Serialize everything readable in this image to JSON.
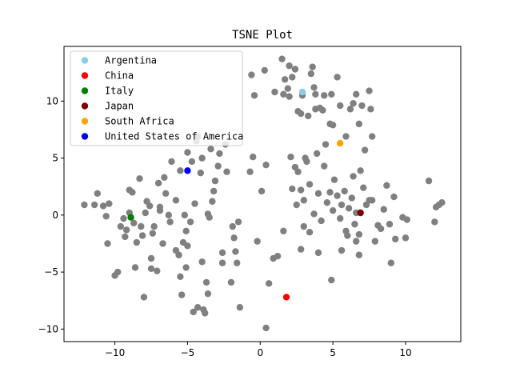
{
  "chart_data": {
    "type": "scatter",
    "title": "TSNE Plot",
    "xlabel": "",
    "ylabel": "",
    "xlim": [
      -13.5,
      13.8
    ],
    "ylim": [
      -11.1,
      14.8
    ],
    "xticks": [
      -10,
      -5,
      0,
      5,
      10
    ],
    "yticks": [
      -10,
      -5,
      0,
      5,
      10
    ],
    "grid": false,
    "legend_position": "top-left",
    "background_points_color": "#808080",
    "background_points": [
      [
        -12.1,
        0.9
      ],
      [
        -11.4,
        0.9
      ],
      [
        -11.2,
        1.9
      ],
      [
        -10.8,
        0.8
      ],
      [
        -10.6,
        -0.1
      ],
      [
        -10.4,
        1.0
      ],
      [
        -10.5,
        -2.5
      ],
      [
        -10.0,
        -5.3
      ],
      [
        -9.8,
        -5.0
      ],
      [
        -9.6,
        -1.0
      ],
      [
        -9.4,
        -0.3
      ],
      [
        -9.3,
        -1.9
      ],
      [
        -9.2,
        -1.3
      ],
      [
        -9.0,
        0.2
      ],
      [
        -9.0,
        2.2
      ],
      [
        -8.8,
        2.0
      ],
      [
        -8.7,
        -0.7
      ],
      [
        -8.6,
        -4.6
      ],
      [
        -8.5,
        -2.4
      ],
      [
        -8.3,
        3.2
      ],
      [
        -8.2,
        -1.0
      ],
      [
        -8.1,
        -1.8
      ],
      [
        -8.0,
        -7.2
      ],
      [
        -7.9,
        0.2
      ],
      [
        -7.8,
        1.2
      ],
      [
        -7.6,
        0.8
      ],
      [
        -7.5,
        -3.8
      ],
      [
        -7.5,
        -4.7
      ],
      [
        -7.4,
        -1.6
      ],
      [
        -7.3,
        -1.0
      ],
      [
        -7.1,
        -4.9
      ],
      [
        -7.0,
        2.8
      ],
      [
        -6.9,
        0.4
      ],
      [
        -6.9,
        0.7
      ],
      [
        -6.7,
        -2.5
      ],
      [
        -6.6,
        3.3
      ],
      [
        -6.5,
        1.9
      ],
      [
        -6.3,
        0.0
      ],
      [
        -6.2,
        -0.6
      ],
      [
        -6.1,
        4.7
      ],
      [
        -5.8,
        1.3
      ],
      [
        -5.8,
        -3.1
      ],
      [
        -5.6,
        -3.5
      ],
      [
        -5.5,
        3.9
      ],
      [
        -5.5,
        -5.4
      ],
      [
        -5.4,
        -7.0
      ],
      [
        -5.3,
        -2.4
      ],
      [
        -5.2,
        0.0
      ],
      [
        -5.1,
        -1.4
      ],
      [
        -5.1,
        -4.6
      ],
      [
        -5.0,
        5.5
      ],
      [
        -5.0,
        -2.7
      ],
      [
        -4.8,
        -0.6
      ],
      [
        -4.7,
        4.7
      ],
      [
        -4.6,
        -8.5
      ],
      [
        -4.5,
        1.0
      ],
      [
        -4.4,
        6.5
      ],
      [
        -4.3,
        6.9
      ],
      [
        -4.3,
        -8.1
      ],
      [
        -4.1,
        3.7
      ],
      [
        -4.0,
        5.0
      ],
      [
        -4.0,
        -4.1
      ],
      [
        -3.9,
        -8.3
      ],
      [
        -3.8,
        -8.6
      ],
      [
        -3.7,
        -5.9
      ],
      [
        -3.6,
        -6.9
      ],
      [
        -3.6,
        0.1
      ],
      [
        -3.5,
        -0.2
      ],
      [
        -3.4,
        5.8
      ],
      [
        -3.3,
        1.2
      ],
      [
        -3.2,
        2.1
      ],
      [
        -3.1,
        3.0
      ],
      [
        -2.9,
        4.3
      ],
      [
        -2.8,
        5.4
      ],
      [
        -2.6,
        -3.3
      ],
      [
        -2.6,
        -4.2
      ],
      [
        -2.4,
        6.2
      ],
      [
        -2.3,
        3.8
      ],
      [
        -2.0,
        -5.9
      ],
      [
        -1.9,
        -1.0
      ],
      [
        -1.8,
        -2.0
      ],
      [
        -1.7,
        -3.2
      ],
      [
        -1.6,
        -4.2
      ],
      [
        -1.5,
        -0.6
      ],
      [
        -1.4,
        -8.1
      ],
      [
        -0.7,
        3.8
      ],
      [
        -0.6,
        12.3
      ],
      [
        -0.5,
        5.1
      ],
      [
        -0.4,
        10.5
      ],
      [
        -0.2,
        -2.3
      ],
      [
        0.1,
        2.1
      ],
      [
        0.3,
        12.7
      ],
      [
        0.4,
        4.4
      ],
      [
        0.4,
        -9.9
      ],
      [
        0.6,
        -6.0
      ],
      [
        1.0,
        10.8
      ],
      [
        1.2,
        -3.6
      ],
      [
        1.5,
        13.7
      ],
      [
        1.6,
        10.6
      ],
      [
        1.7,
        11.9
      ],
      [
        1.9,
        11.1
      ],
      [
        2.0,
        13.1
      ],
      [
        2.0,
        10.4
      ],
      [
        2.1,
        5.1
      ],
      [
        2.2,
        12.1
      ],
      [
        2.4,
        4.2
      ],
      [
        2.4,
        12.8
      ],
      [
        2.6,
        9.1
      ],
      [
        2.8,
        8.9
      ],
      [
        2.9,
        10.5
      ],
      [
        3.1,
        5.0
      ],
      [
        3.3,
        8.7
      ],
      [
        3.5,
        12.4
      ],
      [
        3.6,
        13.0
      ],
      [
        3.7,
        11.2
      ],
      [
        3.8,
        9.3
      ],
      [
        3.8,
        10.6
      ],
      [
        4.1,
        9.4
      ],
      [
        4.3,
        9.2
      ],
      [
        4.4,
        10.5
      ],
      [
        4.5,
        6.2
      ],
      [
        4.8,
        8.0
      ],
      [
        4.9,
        10.6
      ],
      [
        5.0,
        7.9
      ],
      [
        5.3,
        12.1
      ],
      [
        5.5,
        9.6
      ],
      [
        5.9,
        6.9
      ],
      [
        6.2,
        9.3
      ],
      [
        6.4,
        9.8
      ],
      [
        6.6,
        10.6
      ],
      [
        6.8,
        8.0
      ],
      [
        7.0,
        9.6
      ],
      [
        7.2,
        5.7
      ],
      [
        7.5,
        10.9
      ],
      [
        7.6,
        9.3
      ],
      [
        7.7,
        6.9
      ],
      [
        2.2,
        2.3
      ],
      [
        2.5,
        0.9
      ],
      [
        2.6,
        3.8
      ],
      [
        2.8,
        2.2
      ],
      [
        3.0,
        1.3
      ],
      [
        3.2,
        4.7
      ],
      [
        3.4,
        2.7
      ],
      [
        3.7,
        0.1
      ],
      [
        3.9,
        5.4
      ],
      [
        4.0,
        1.9
      ],
      [
        4.2,
        -0.5
      ],
      [
        4.4,
        4.3
      ],
      [
        4.6,
        1.1
      ],
      [
        4.8,
        2.0
      ],
      [
        5.0,
        0.4
      ],
      [
        5.1,
        3.1
      ],
      [
        5.3,
        1.7
      ],
      [
        5.5,
        -0.3
      ],
      [
        5.6,
        0.9
      ],
      [
        5.8,
        2.1
      ],
      [
        5.9,
        -1.4
      ],
      [
        6.1,
        0.6
      ],
      [
        6.3,
        1.5
      ],
      [
        6.4,
        3.4
      ],
      [
        6.5,
        -0.8
      ],
      [
        6.6,
        0.2
      ],
      [
        6.8,
        -1.7
      ],
      [
        6.9,
        3.9
      ],
      [
        7.1,
        2.4
      ],
      [
        7.3,
        0.9
      ],
      [
        7.5,
        1.3
      ],
      [
        7.7,
        1.3
      ],
      [
        7.9,
        -2.3
      ],
      [
        8.1,
        -0.9
      ],
      [
        8.3,
        -1.2
      ],
      [
        8.5,
        0.5
      ],
      [
        8.7,
        2.6
      ],
      [
        8.9,
        -0.8
      ],
      [
        9.0,
        -4.2
      ],
      [
        9.2,
        1.6
      ],
      [
        9.3,
        -2.1
      ],
      [
        9.8,
        -0.2
      ],
      [
        10.0,
        -2.0
      ],
      [
        10.1,
        -0.4
      ],
      [
        11.6,
        3.0
      ],
      [
        12.0,
        -0.6
      ],
      [
        12.1,
        0.7
      ],
      [
        12.3,
        0.9
      ],
      [
        12.5,
        1.1
      ],
      [
        4.0,
        -3.3
      ],
      [
        4.9,
        -5.7
      ],
      [
        5.6,
        -3.1
      ],
      [
        6.0,
        -1.8
      ],
      [
        6.6,
        -2.3
      ],
      [
        6.8,
        -3.5
      ],
      [
        3.0,
        -1.0
      ],
      [
        2.8,
        -3.0
      ],
      [
        3.4,
        -1.5
      ],
      [
        1.6,
        -1.4
      ],
      [
        0.9,
        -3.8
      ]
    ],
    "series": [
      {
        "name": "Argentina",
        "color": "#87ceeb",
        "x": [
          2.9
        ],
        "y": [
          10.8
        ]
      },
      {
        "name": "China",
        "color": "#ff0000",
        "x": [
          1.8
        ],
        "y": [
          -7.2
        ]
      },
      {
        "name": "Italy",
        "color": "#008000",
        "x": [
          -8.9
        ],
        "y": [
          -0.2
        ]
      },
      {
        "name": "Japan",
        "color": "#800000",
        "x": [
          6.9
        ],
        "y": [
          0.2
        ]
      },
      {
        "name": "South Africa",
        "color": "#ffa500",
        "x": [
          5.5
        ],
        "y": [
          6.3
        ]
      },
      {
        "name": "United States of America",
        "color": "#0000ff",
        "x": [
          -5.0
        ],
        "y": [
          3.9
        ]
      }
    ]
  }
}
